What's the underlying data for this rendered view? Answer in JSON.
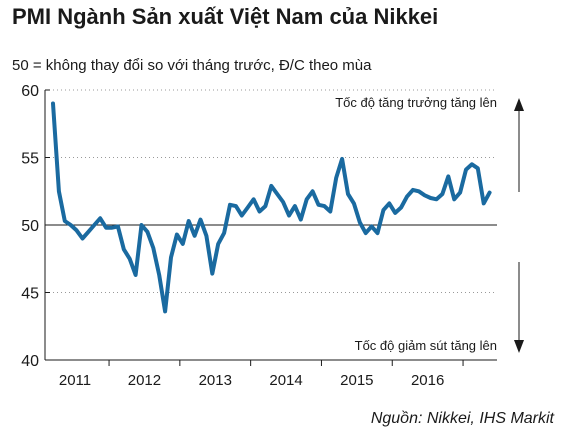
{
  "chart_data": {
    "type": "line",
    "title": "PMI Ngành Sản xuất Việt Nam của Nikkei",
    "subtitle": "50 = không thay đổi so với tháng trước, Đ/C theo mùa",
    "source": "Nguồn: Nikkei, IHS Markit",
    "ylim": [
      40,
      60
    ],
    "yticks": [
      40,
      45,
      50,
      55,
      60
    ],
    "reference_line": 50,
    "grid": "horizontal dotted",
    "x_tick_labels": [
      "2011",
      "2012",
      "2013",
      "2014",
      "2015",
      "2016"
    ],
    "annotations": {
      "up": "Tốc độ tăng trưởng tăng lên",
      "down": "Tốc độ giảm sút tăng lên"
    },
    "colors": {
      "line": "#1a6aa0",
      "axis": "#1a1a1a",
      "grid": "#999999"
    },
    "series": [
      {
        "x_start": "2011-03",
        "values": [
          59.0,
          52.5,
          50.3,
          50.0,
          49.6,
          49.0,
          49.5,
          50.0,
          50.5,
          49.8,
          49.8,
          49.9,
          48.2,
          47.5,
          46.3,
          50.0,
          49.5,
          48.3,
          46.3,
          43.6,
          47.6,
          49.3,
          48.6,
          50.3,
          49.2,
          50.4,
          49.2,
          46.4,
          48.6,
          49.4,
          51.5,
          51.4,
          50.7,
          51.3,
          51.9,
          51.0,
          51.4,
          52.9,
          52.3,
          51.7,
          50.7,
          51.4,
          50.4,
          51.9,
          52.5,
          51.5,
          51.4,
          51.0,
          53.5,
          54.9,
          52.3,
          51.6,
          50.2,
          49.4,
          49.9,
          49.4,
          51.1,
          51.6,
          50.9,
          51.3,
          52.1,
          52.6,
          52.5,
          52.2,
          52.0,
          51.9,
          52.3,
          53.6,
          51.9,
          52.4,
          54.1,
          54.5,
          54.2,
          51.6,
          52.4
        ]
      }
    ]
  }
}
